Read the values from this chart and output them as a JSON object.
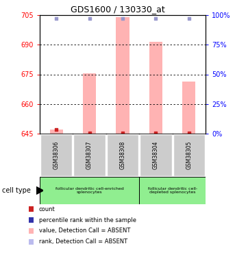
{
  "title": "GDS1600 / 130330_at",
  "samples": [
    "GSM38306",
    "GSM38307",
    "GSM38308",
    "GSM38304",
    "GSM38305"
  ],
  "values": [
    647.0,
    675.5,
    703.8,
    691.5,
    671.5
  ],
  "rank_pct": [
    97,
    97,
    97,
    97,
    97
  ],
  "ylim_left": [
    645,
    705
  ],
  "ylim_right": [
    0,
    100
  ],
  "yticks_left": [
    645,
    660,
    675,
    690,
    705
  ],
  "yticks_right": [
    0,
    25,
    50,
    75,
    100
  ],
  "bar_color": "#ffb3b3",
  "rank_marker_color": "#9999cc",
  "count_marker_color": "#cc2222",
  "count_values": [
    647.0,
    645.3,
    645.3,
    645.3,
    645.3
  ],
  "legend_colors": [
    "#cc2222",
    "#3333aa",
    "#ffb3b3",
    "#bbbbee"
  ],
  "legend_labels": [
    "count",
    "percentile rank within the sample",
    "value, Detection Call = ABSENT",
    "rank, Detection Call = ABSENT"
  ],
  "cell_type_labels": [
    "follicular dendritic cell-enriched\nsplenocytes",
    "follicular dendritic cell-\ndepleted splenocytes"
  ],
  "cell_type_color": "#90ee90",
  "sample_box_color": "#cccccc",
  "bg_color": "#ffffff"
}
